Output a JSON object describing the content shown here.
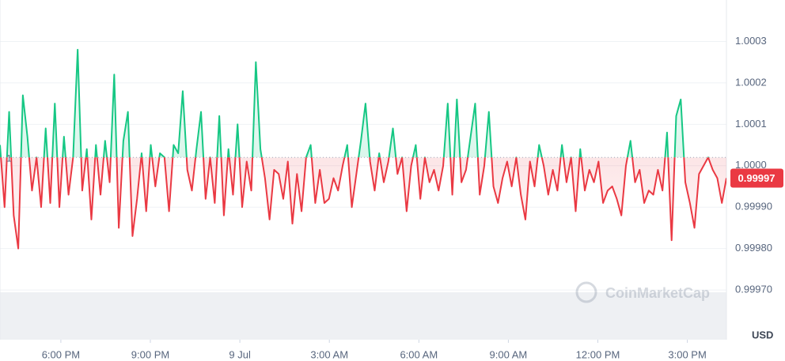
{
  "chart_data": {
    "type": "line",
    "currency": "USD",
    "watermark": "CoinMarketCap",
    "reference": {
      "value": 1.00002,
      "label": "1"
    },
    "current": {
      "value": 0.99997,
      "label": "0.99997"
    },
    "up_color": "#16c784",
    "down_color": "#ea3943",
    "grid": true,
    "xlim": [
      -2.04,
      22.31
    ],
    "xticks": [
      {
        "value": 0,
        "label": "6:00 PM"
      },
      {
        "value": 3,
        "label": "9:00 PM"
      },
      {
        "value": 6,
        "label": "9 Jul"
      },
      {
        "value": 9,
        "label": "3:00 AM"
      },
      {
        "value": 12,
        "label": "6:00 AM"
      },
      {
        "value": 15,
        "label": "9:00 AM"
      },
      {
        "value": 18,
        "label": "12:00 PM"
      },
      {
        "value": 21,
        "label": "3:00 PM"
      }
    ],
    "ylim": [
      0.99958,
      1.0004
    ],
    "yticks": [
      {
        "value": 0.9997,
        "label": "0.99970"
      },
      {
        "value": 0.9998,
        "label": "0.99980"
      },
      {
        "value": 0.9999,
        "label": "0.99990"
      },
      {
        "value": 1,
        "label": "1.0000"
      },
      1.0001,
      1.0002,
      1.0003
    ],
    "values": [
      1.00005,
      0.9999,
      1.00013,
      0.99988,
      0.9998,
      1.00017,
      1.00007,
      0.99994,
      1.00002,
      0.9999,
      1.00009,
      0.99991,
      1.00015,
      0.9999,
      1.00007,
      0.99993,
      1.00002,
      1.00028,
      0.99994,
      1.00004,
      0.99987,
      1.00005,
      0.99993,
      1.00006,
      0.99996,
      1.00022,
      0.99985,
      1.00006,
      1.00013,
      0.99983,
      0.99992,
      1.00003,
      0.99989,
      1.00005,
      0.99995,
      1.00003,
      1.00002,
      0.99989,
      1.00005,
      1.00003,
      1.00018,
      0.99999,
      0.99994,
      1.00004,
      1.00013,
      0.99992,
      1.00002,
      0.99991,
      1.00012,
      0.99988,
      1.00004,
      0.99993,
      1.0001,
      0.9999,
      1.00001,
      0.99994,
      1.00025,
      1.00004,
      0.99997,
      0.99987,
      0.99999,
      0.99998,
      0.99992,
      1.00001,
      0.99986,
      0.99998,
      0.99989,
      1.00002,
      1.00005,
      0.99991,
      0.99999,
      0.99991,
      0.99992,
      0.99997,
      0.99994,
      1,
      1.00005,
      0.9999,
      0.99998,
      1.00006,
      1.00015,
      1.00001,
      0.99994,
      1.00003,
      0.99996,
      1.00001,
      1.00009,
      0.99998,
      1.00002,
      0.99989,
      1,
      1.00005,
      0.99992,
      1.00002,
      0.99996,
      0.99999,
      0.99994,
      1,
      1.00015,
      0.99993,
      1.00016,
      0.99996,
      0.99999,
      1.00007,
      1.00015,
      0.99993,
      1,
      1.00013,
      0.99995,
      0.99991,
      0.99997,
      1.00001,
      0.99995,
      1.00002,
      0.99993,
      0.99987,
      1.00001,
      0.99995,
      1.00005,
      1,
      0.99993,
      0.99999,
      0.99994,
      1.00005,
      0.99996,
      1.00002,
      0.99989,
      1.00004,
      0.99994,
      0.99999,
      0.99996,
      1.00001,
      0.99991,
      0.99994,
      0.99995,
      0.99992,
      0.99988,
      1,
      1.00006,
      0.99996,
      0.99999,
      0.99991,
      0.99994,
      0.99993,
      0.99999,
      0.99994,
      1.00008,
      0.99982,
      1.00012,
      1.00016,
      0.99996,
      0.99991,
      0.99985,
      0.99998,
      1,
      1.00002,
      0.99999,
      0.99997,
      0.99991,
      0.99997
    ]
  }
}
